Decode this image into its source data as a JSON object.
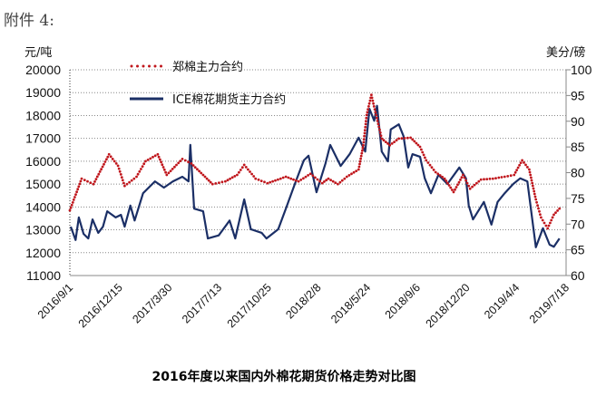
{
  "header": {
    "attachment_label": "附件 4:"
  },
  "colors": {
    "zhengzhou": "#c0161c",
    "ice": "#1b2f66",
    "grid": "#888888"
  },
  "chart_data": {
    "type": "line",
    "title": "2016年度以来国内外棉花期货价格走势对比图",
    "x_unit": "days since 2016/9/1",
    "xlim": [
      0,
      1050
    ],
    "x_tick_labels": [
      "2016/9/1",
      "2016/12/15",
      "2017/3/30",
      "2017/7/13",
      "2017/10/25",
      "2018/2/8",
      "2018/5/24",
      "2018/9/6",
      "2018/12/20",
      "2019/4/4",
      "2019/7/18"
    ],
    "x_tick_days": [
      0,
      105,
      210,
      315,
      420,
      525,
      630,
      735,
      840,
      945,
      1050
    ],
    "left_axis": {
      "label": "元/吨",
      "ylim": [
        11000,
        20000
      ],
      "ticks": [
        "20000",
        "19000",
        "18000",
        "17000",
        "16000",
        "15000",
        "14000",
        "13000",
        "12000",
        "11000"
      ]
    },
    "right_axis": {
      "label": "美分/磅",
      "ylim": [
        60,
        100
      ],
      "ticks": [
        "100",
        "95",
        "90",
        "85",
        "80",
        "75",
        "70",
        "65",
        "60"
      ]
    },
    "grid": true,
    "legend_position": "top-left",
    "series": [
      {
        "name": "郑棉主力合约",
        "axis": "left",
        "style": "dotted",
        "points": [
          [
            0,
            13850
          ],
          [
            25,
            15240
          ],
          [
            50,
            15000
          ],
          [
            83,
            16300
          ],
          [
            102,
            15800
          ],
          [
            116,
            14920
          ],
          [
            141,
            15320
          ],
          [
            160,
            16000
          ],
          [
            186,
            16300
          ],
          [
            205,
            15400
          ],
          [
            238,
            16100
          ],
          [
            257,
            15900
          ],
          [
            282,
            15400
          ],
          [
            302,
            15000
          ],
          [
            329,
            15120
          ],
          [
            354,
            15400
          ],
          [
            369,
            15840
          ],
          [
            393,
            15240
          ],
          [
            418,
            15040
          ],
          [
            457,
            15320
          ],
          [
            484,
            15120
          ],
          [
            509,
            15450
          ],
          [
            534,
            15040
          ],
          [
            547,
            15240
          ],
          [
            567,
            15000
          ],
          [
            586,
            15320
          ],
          [
            611,
            15640
          ],
          [
            621,
            16700
          ],
          [
            628,
            18020
          ],
          [
            638,
            18900
          ],
          [
            648,
            18020
          ],
          [
            660,
            16990
          ],
          [
            677,
            16700
          ],
          [
            696,
            16990
          ],
          [
            721,
            17030
          ],
          [
            741,
            16630
          ],
          [
            754,
            16040
          ],
          [
            774,
            15520
          ],
          [
            793,
            15240
          ],
          [
            812,
            14650
          ],
          [
            832,
            15400
          ],
          [
            847,
            14800
          ],
          [
            870,
            15200
          ],
          [
            895,
            15240
          ],
          [
            920,
            15320
          ],
          [
            940,
            15400
          ],
          [
            957,
            16040
          ],
          [
            972,
            15640
          ],
          [
            986,
            14330
          ],
          [
            997,
            13540
          ],
          [
            1011,
            13060
          ],
          [
            1024,
            13660
          ],
          [
            1036,
            13930
          ]
        ]
      },
      {
        "name": "ICE棉花期货主力合约",
        "axis": "right",
        "style": "solid",
        "points": [
          [
            2,
            69.5
          ],
          [
            12,
            66.9
          ],
          [
            19,
            71.3
          ],
          [
            29,
            68.1
          ],
          [
            39,
            67.2
          ],
          [
            48,
            70.9
          ],
          [
            60,
            68.3
          ],
          [
            70,
            69.5
          ],
          [
            79,
            72.5
          ],
          [
            97,
            71.3
          ],
          [
            108,
            71.8
          ],
          [
            116,
            69.5
          ],
          [
            128,
            73.6
          ],
          [
            137,
            70.7
          ],
          [
            155,
            76.0
          ],
          [
            180,
            78.3
          ],
          [
            199,
            77.1
          ],
          [
            218,
            78.3
          ],
          [
            238,
            79.2
          ],
          [
            251,
            78.3
          ],
          [
            255,
            85.4
          ],
          [
            263,
            73.0
          ],
          [
            282,
            72.5
          ],
          [
            292,
            67.2
          ],
          [
            315,
            67.8
          ],
          [
            338,
            70.7
          ],
          [
            350,
            67.2
          ],
          [
            369,
            74.8
          ],
          [
            383,
            69.0
          ],
          [
            406,
            68.3
          ],
          [
            416,
            67.2
          ],
          [
            441,
            69.0
          ],
          [
            457,
            73.0
          ],
          [
            476,
            77.8
          ],
          [
            495,
            82.4
          ],
          [
            505,
            83.3
          ],
          [
            522,
            76.2
          ],
          [
            541,
            81.8
          ],
          [
            551,
            85.4
          ],
          [
            573,
            81.3
          ],
          [
            592,
            83.6
          ],
          [
            611,
            86.8
          ],
          [
            625,
            84.1
          ],
          [
            634,
            92.4
          ],
          [
            644,
            90.1
          ],
          [
            650,
            93.0
          ],
          [
            660,
            84.1
          ],
          [
            673,
            82.2
          ],
          [
            679,
            88.4
          ],
          [
            696,
            89.4
          ],
          [
            706,
            87.1
          ],
          [
            716,
            81.0
          ],
          [
            725,
            83.6
          ],
          [
            741,
            83.1
          ],
          [
            751,
            78.9
          ],
          [
            764,
            76.0
          ],
          [
            780,
            79.6
          ],
          [
            799,
            77.8
          ],
          [
            824,
            81.0
          ],
          [
            838,
            78.9
          ],
          [
            844,
            73.6
          ],
          [
            853,
            70.9
          ],
          [
            876,
            74.3
          ],
          [
            892,
            69.9
          ],
          [
            905,
            74.3
          ],
          [
            920,
            76.0
          ],
          [
            938,
            77.8
          ],
          [
            953,
            78.9
          ],
          [
            968,
            78.3
          ],
          [
            986,
            65.5
          ],
          [
            1001,
            69.2
          ],
          [
            1015,
            66.0
          ],
          [
            1024,
            65.6
          ],
          [
            1036,
            67.2
          ]
        ]
      }
    ]
  }
}
